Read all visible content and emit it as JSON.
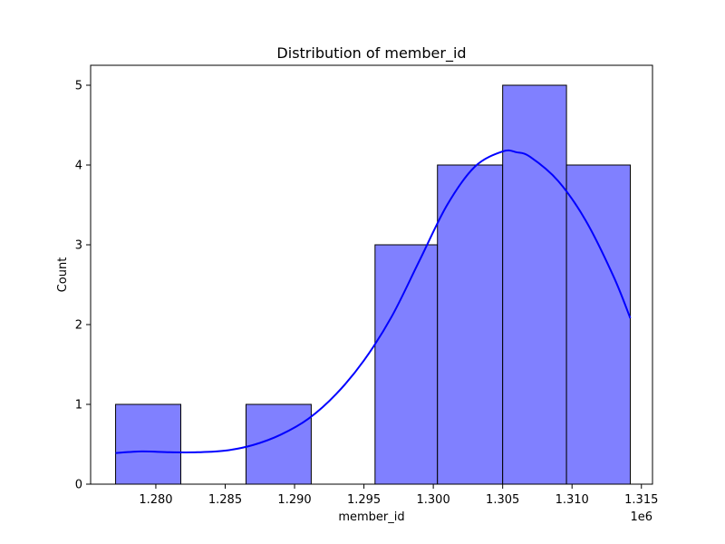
{
  "chart_data": {
    "type": "bar",
    "title": "Distribution of member_id",
    "xlabel": "member_id",
    "ylabel": "Count",
    "x_offset_label": "1e6",
    "xlim": [
      1.2753,
      1.3158
    ],
    "ylim": [
      0,
      5.25
    ],
    "x_ticks": [
      1.28,
      1.285,
      1.29,
      1.295,
      1.3,
      1.305,
      1.31,
      1.315
    ],
    "x_tick_labels": [
      "1.280",
      "1.285",
      "1.290",
      "1.295",
      "1.300",
      "1.305",
      "1.310",
      "1.315"
    ],
    "y_ticks": [
      0,
      1,
      2,
      3,
      4,
      5
    ],
    "y_tick_labels": [
      "0",
      "1",
      "2",
      "3",
      "4",
      "5"
    ],
    "bins": [
      {
        "start": 1.2771,
        "end": 1.2818,
        "count": 1
      },
      {
        "start": 1.2818,
        "end": 1.2865,
        "count": 0
      },
      {
        "start": 1.2865,
        "end": 1.2912,
        "count": 1
      },
      {
        "start": 1.2912,
        "end": 1.2958,
        "count": 0
      },
      {
        "start": 1.2958,
        "end": 1.3003,
        "count": 3
      },
      {
        "start": 1.3003,
        "end": 1.305,
        "count": 4
      },
      {
        "start": 1.305,
        "end": 1.3096,
        "count": 5
      },
      {
        "start": 1.3096,
        "end": 1.3142,
        "count": 4
      }
    ],
    "kde": {
      "x": [
        1.2771,
        1.279,
        1.281,
        1.283,
        1.285,
        1.287,
        1.289,
        1.291,
        1.293,
        1.295,
        1.297,
        1.299,
        1.301,
        1.303,
        1.305,
        1.306,
        1.307,
        1.309,
        1.311,
        1.313,
        1.3142
      ],
      "y": [
        0.39,
        0.41,
        0.4,
        0.4,
        0.42,
        0.49,
        0.62,
        0.82,
        1.13,
        1.55,
        2.1,
        2.8,
        3.5,
        3.98,
        4.17,
        4.16,
        4.1,
        3.8,
        3.3,
        2.6,
        2.08
      ]
    },
    "grid": false,
    "colors": {
      "bar_fill": "#8080ff",
      "bar_edge": "#000000",
      "kde_line": "#0000ff"
    }
  }
}
